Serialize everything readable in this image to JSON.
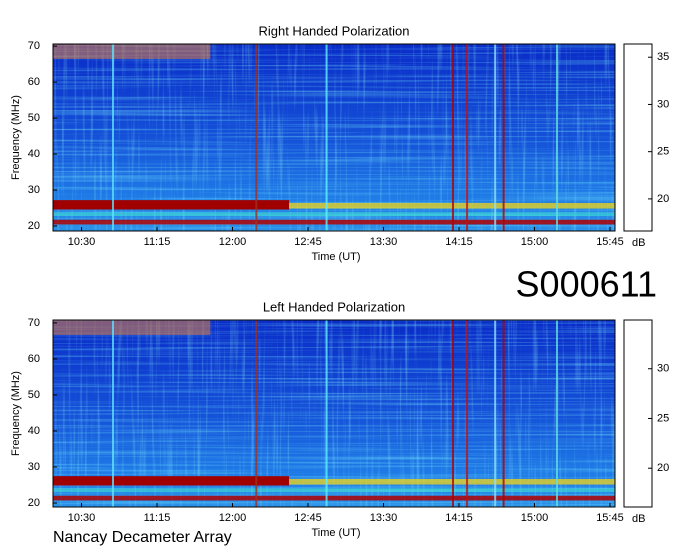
{
  "chart_data": [
    {
      "type": "heatmap",
      "title": "Right Handed Polarization",
      "x_label": "Time (UT)",
      "y_label": "Frequency (MHz)",
      "xlim": [
        613,
        948
      ],
      "xticks": [
        {
          "value": 630,
          "label": "10:30"
        },
        {
          "value": 675,
          "label": "11:15"
        },
        {
          "value": 720,
          "label": "12:00"
        },
        {
          "value": 765,
          "label": "12:45"
        },
        {
          "value": 810,
          "label": "13:30"
        },
        {
          "value": 855,
          "label": "14:15"
        },
        {
          "value": 900,
          "label": "15:00"
        },
        {
          "value": 945,
          "label": "15:45"
        }
      ],
      "ylim": [
        18.6,
        70.6
      ],
      "yticks": [
        20,
        30,
        40,
        50,
        60,
        70
      ],
      "colormap": "jet",
      "colorbar": {
        "label": "dB",
        "lim": [
          16.6,
          36.4
        ],
        "ticks": [
          20,
          25,
          30,
          35
        ]
      }
    },
    {
      "type": "heatmap",
      "title": "Left Handed Polarization",
      "x_label": "Time (UT)",
      "y_label": "Frequency (MHz)",
      "xlim": [
        613,
        948
      ],
      "xticks": [
        {
          "value": 630,
          "label": "10:30"
        },
        {
          "value": 675,
          "label": "11:15"
        },
        {
          "value": 720,
          "label": "12:00"
        },
        {
          "value": 765,
          "label": "12:45"
        },
        {
          "value": 810,
          "label": "13:30"
        },
        {
          "value": 855,
          "label": "14:15"
        },
        {
          "value": 900,
          "label": "15:00"
        },
        {
          "value": 945,
          "label": "15:45"
        }
      ],
      "ylim": [
        18.9,
        70.8
      ],
      "yticks": [
        20,
        30,
        40,
        50,
        60,
        70
      ],
      "colormap": "jet",
      "colorbar": {
        "label": "dB",
        "lim": [
          16.1,
          34.9
        ],
        "ticks": [
          20,
          25,
          30
        ]
      }
    }
  ],
  "session_id": "S000611",
  "footer": "Nancay Decameter Array"
}
